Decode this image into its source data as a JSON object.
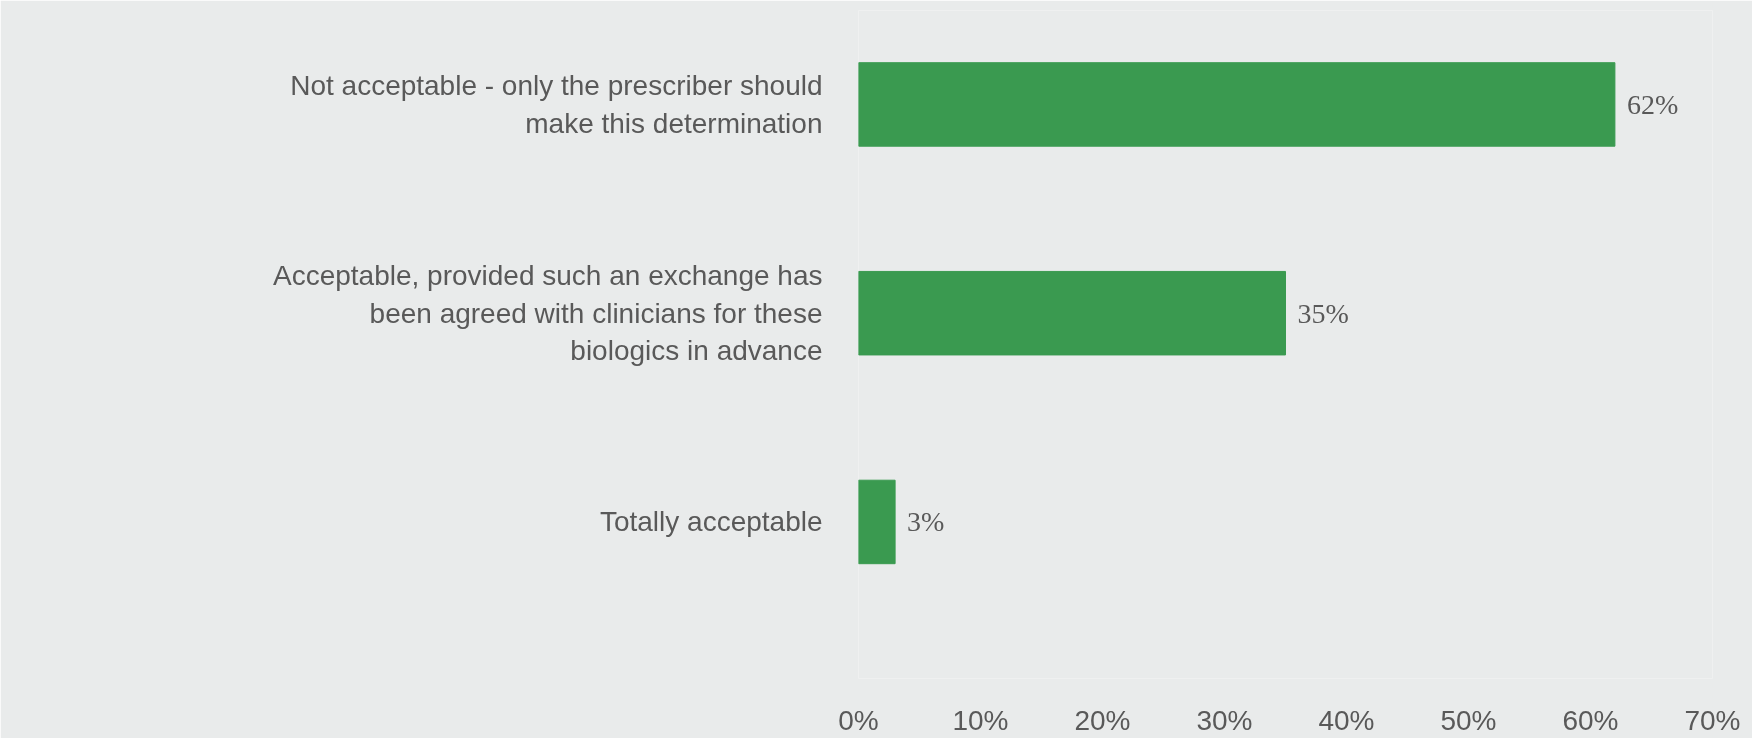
{
  "chart_data": {
    "type": "bar",
    "orientation": "horizontal",
    "categories": [
      "Not acceptable - only the prescriber should make this determination",
      "Acceptable, provided such an exchange has been agreed with clinicians for these biologics in advance",
      "Totally acceptable"
    ],
    "values": [
      62,
      35,
      3
    ],
    "value_labels": [
      "62%",
      "35%",
      "3%"
    ],
    "color": "#3a9a50",
    "xlim": [
      0,
      70
    ],
    "xticks": [
      {
        "value": 0,
        "label": "0%"
      },
      {
        "value": 10,
        "label": "10%"
      },
      {
        "value": 20,
        "label": "20%"
      },
      {
        "value": 30,
        "label": "30%"
      },
      {
        "value": 40,
        "label": "40%"
      },
      {
        "value": 50,
        "label": "50%"
      },
      {
        "value": 60,
        "label": "60%"
      },
      {
        "value": 70,
        "label": "70%"
      }
    ],
    "grid": false
  }
}
